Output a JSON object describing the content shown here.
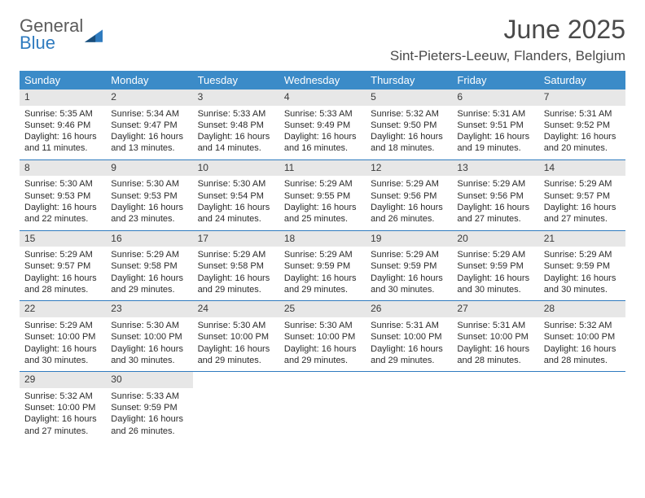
{
  "logo": {
    "text1": "General",
    "text2": "Blue"
  },
  "title": "June 2025",
  "location": "Sint-Pieters-Leeuw, Flanders, Belgium",
  "dow_header_bg": "#3b8bc8",
  "dow_header_fg": "#ffffff",
  "daynum_bg": "#e7e7e7",
  "rule_color": "#2f7bbf",
  "body_font_size": 11,
  "days_of_week": [
    "Sunday",
    "Monday",
    "Tuesday",
    "Wednesday",
    "Thursday",
    "Friday",
    "Saturday"
  ],
  "weeks": [
    [
      {
        "n": "1",
        "sr": "5:35 AM",
        "ss": "9:46 PM",
        "dl": "16 hours and 11 minutes."
      },
      {
        "n": "2",
        "sr": "5:34 AM",
        "ss": "9:47 PM",
        "dl": "16 hours and 13 minutes."
      },
      {
        "n": "3",
        "sr": "5:33 AM",
        "ss": "9:48 PM",
        "dl": "16 hours and 14 minutes."
      },
      {
        "n": "4",
        "sr": "5:33 AM",
        "ss": "9:49 PM",
        "dl": "16 hours and 16 minutes."
      },
      {
        "n": "5",
        "sr": "5:32 AM",
        "ss": "9:50 PM",
        "dl": "16 hours and 18 minutes."
      },
      {
        "n": "6",
        "sr": "5:31 AM",
        "ss": "9:51 PM",
        "dl": "16 hours and 19 minutes."
      },
      {
        "n": "7",
        "sr": "5:31 AM",
        "ss": "9:52 PM",
        "dl": "16 hours and 20 minutes."
      }
    ],
    [
      {
        "n": "8",
        "sr": "5:30 AM",
        "ss": "9:53 PM",
        "dl": "16 hours and 22 minutes."
      },
      {
        "n": "9",
        "sr": "5:30 AM",
        "ss": "9:53 PM",
        "dl": "16 hours and 23 minutes."
      },
      {
        "n": "10",
        "sr": "5:30 AM",
        "ss": "9:54 PM",
        "dl": "16 hours and 24 minutes."
      },
      {
        "n": "11",
        "sr": "5:29 AM",
        "ss": "9:55 PM",
        "dl": "16 hours and 25 minutes."
      },
      {
        "n": "12",
        "sr": "5:29 AM",
        "ss": "9:56 PM",
        "dl": "16 hours and 26 minutes."
      },
      {
        "n": "13",
        "sr": "5:29 AM",
        "ss": "9:56 PM",
        "dl": "16 hours and 27 minutes."
      },
      {
        "n": "14",
        "sr": "5:29 AM",
        "ss": "9:57 PM",
        "dl": "16 hours and 27 minutes."
      }
    ],
    [
      {
        "n": "15",
        "sr": "5:29 AM",
        "ss": "9:57 PM",
        "dl": "16 hours and 28 minutes."
      },
      {
        "n": "16",
        "sr": "5:29 AM",
        "ss": "9:58 PM",
        "dl": "16 hours and 29 minutes."
      },
      {
        "n": "17",
        "sr": "5:29 AM",
        "ss": "9:58 PM",
        "dl": "16 hours and 29 minutes."
      },
      {
        "n": "18",
        "sr": "5:29 AM",
        "ss": "9:59 PM",
        "dl": "16 hours and 29 minutes."
      },
      {
        "n": "19",
        "sr": "5:29 AM",
        "ss": "9:59 PM",
        "dl": "16 hours and 30 minutes."
      },
      {
        "n": "20",
        "sr": "5:29 AM",
        "ss": "9:59 PM",
        "dl": "16 hours and 30 minutes."
      },
      {
        "n": "21",
        "sr": "5:29 AM",
        "ss": "9:59 PM",
        "dl": "16 hours and 30 minutes."
      }
    ],
    [
      {
        "n": "22",
        "sr": "5:29 AM",
        "ss": "10:00 PM",
        "dl": "16 hours and 30 minutes."
      },
      {
        "n": "23",
        "sr": "5:30 AM",
        "ss": "10:00 PM",
        "dl": "16 hours and 30 minutes."
      },
      {
        "n": "24",
        "sr": "5:30 AM",
        "ss": "10:00 PM",
        "dl": "16 hours and 29 minutes."
      },
      {
        "n": "25",
        "sr": "5:30 AM",
        "ss": "10:00 PM",
        "dl": "16 hours and 29 minutes."
      },
      {
        "n": "26",
        "sr": "5:31 AM",
        "ss": "10:00 PM",
        "dl": "16 hours and 29 minutes."
      },
      {
        "n": "27",
        "sr": "5:31 AM",
        "ss": "10:00 PM",
        "dl": "16 hours and 28 minutes."
      },
      {
        "n": "28",
        "sr": "5:32 AM",
        "ss": "10:00 PM",
        "dl": "16 hours and 28 minutes."
      }
    ],
    [
      {
        "n": "29",
        "sr": "5:32 AM",
        "ss": "10:00 PM",
        "dl": "16 hours and 27 minutes."
      },
      {
        "n": "30",
        "sr": "5:33 AM",
        "ss": "9:59 PM",
        "dl": "16 hours and 26 minutes."
      },
      null,
      null,
      null,
      null,
      null
    ]
  ],
  "labels": {
    "sunrise": "Sunrise:",
    "sunset": "Sunset:",
    "daylight": "Daylight:"
  }
}
